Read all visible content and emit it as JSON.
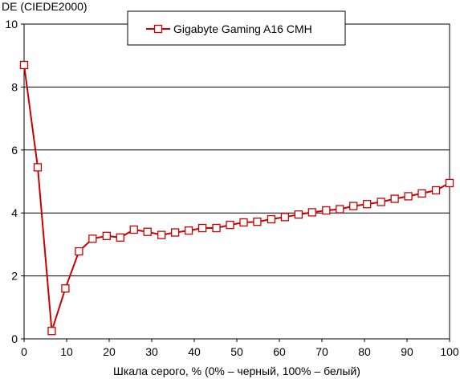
{
  "chart_data": {
    "type": "line",
    "title": "",
    "ylabel": "DE (CIEDE2000)",
    "xlabel": "Шкала серого, % (0% – черный, 100% – белый)",
    "xlim": [
      0,
      100
    ],
    "ylim": [
      0,
      10
    ],
    "x_ticks": [
      0,
      10,
      20,
      30,
      40,
      50,
      60,
      70,
      80,
      90,
      100
    ],
    "y_ticks": [
      0,
      2,
      4,
      6,
      8,
      10
    ],
    "grid": "horizontal",
    "legend_position": "top-center",
    "series": [
      {
        "name": "Gigabyte Gaming A16 CMH",
        "color": "#cc0000",
        "marker": "square",
        "x": [
          0,
          3.2,
          6.5,
          9.7,
          12.9,
          16.1,
          19.4,
          22.6,
          25.8,
          29.0,
          32.3,
          35.5,
          38.7,
          41.9,
          45.2,
          48.4,
          51.6,
          54.8,
          58.1,
          61.3,
          64.5,
          67.7,
          71.0,
          74.2,
          77.4,
          80.6,
          83.9,
          87.1,
          90.3,
          93.5,
          96.8,
          100
        ],
        "y": [
          8.7,
          5.45,
          0.25,
          1.6,
          2.78,
          3.18,
          3.27,
          3.22,
          3.47,
          3.4,
          3.3,
          3.38,
          3.44,
          3.52,
          3.52,
          3.62,
          3.7,
          3.72,
          3.8,
          3.87,
          3.95,
          4.02,
          4.08,
          4.12,
          4.22,
          4.28,
          4.35,
          4.45,
          4.53,
          4.62,
          4.72,
          4.95
        ]
      }
    ]
  }
}
